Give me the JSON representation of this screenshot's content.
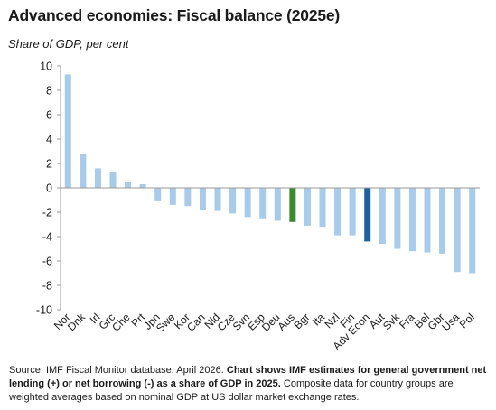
{
  "chart_data": {
    "type": "bar",
    "title": "Advanced economies: Fiscal balance (2025e)",
    "subtitle": "Share of  GDP, per cent",
    "ylim": [
      -10,
      10
    ],
    "yticks": [
      10,
      8,
      6,
      4,
      2,
      0,
      -2,
      -4,
      -6,
      -8,
      -10
    ],
    "categories": [
      "Nor",
      "Dnk",
      "Irl",
      "Grc",
      "Che",
      "Prt",
      "Jpn",
      "Swe",
      "Kor",
      "Can",
      "Nld",
      "Cze",
      "Svn",
      "Esp",
      "Deu",
      "Aus",
      "Bgr",
      "Ita",
      "Nzl",
      "Fin",
      "Adv Econ",
      "Aut",
      "Svk",
      "Fra",
      "Bel",
      "Gbr",
      "Usa",
      "Pol"
    ],
    "values": [
      9.3,
      2.8,
      1.6,
      1.3,
      0.5,
      0.3,
      -1.1,
      -1.4,
      -1.5,
      -1.8,
      -1.9,
      -2.1,
      -2.4,
      -2.5,
      -2.7,
      -2.8,
      -3.1,
      -3.2,
      -3.9,
      -3.9,
      -4.4,
      -4.6,
      -5.0,
      -5.2,
      -5.3,
      -5.4,
      -6.9,
      -7.0
    ],
    "colors": {
      "default": "#a8cbea",
      "Aus": "#3c8a2e",
      "Adv Econ": "#20609e"
    },
    "grid": false,
    "legend": "none"
  },
  "footnote": {
    "source": "Source: IMF Fiscal Monitor database, April 2026. ",
    "bold": "Chart shows IMF estimates for general government net lending (+) or net borrowing (-) as a share of GDP in 2025.",
    "rest": " Composite data for country groups are weighted averages based on nominal GDP at US dollar market exchange rates."
  }
}
